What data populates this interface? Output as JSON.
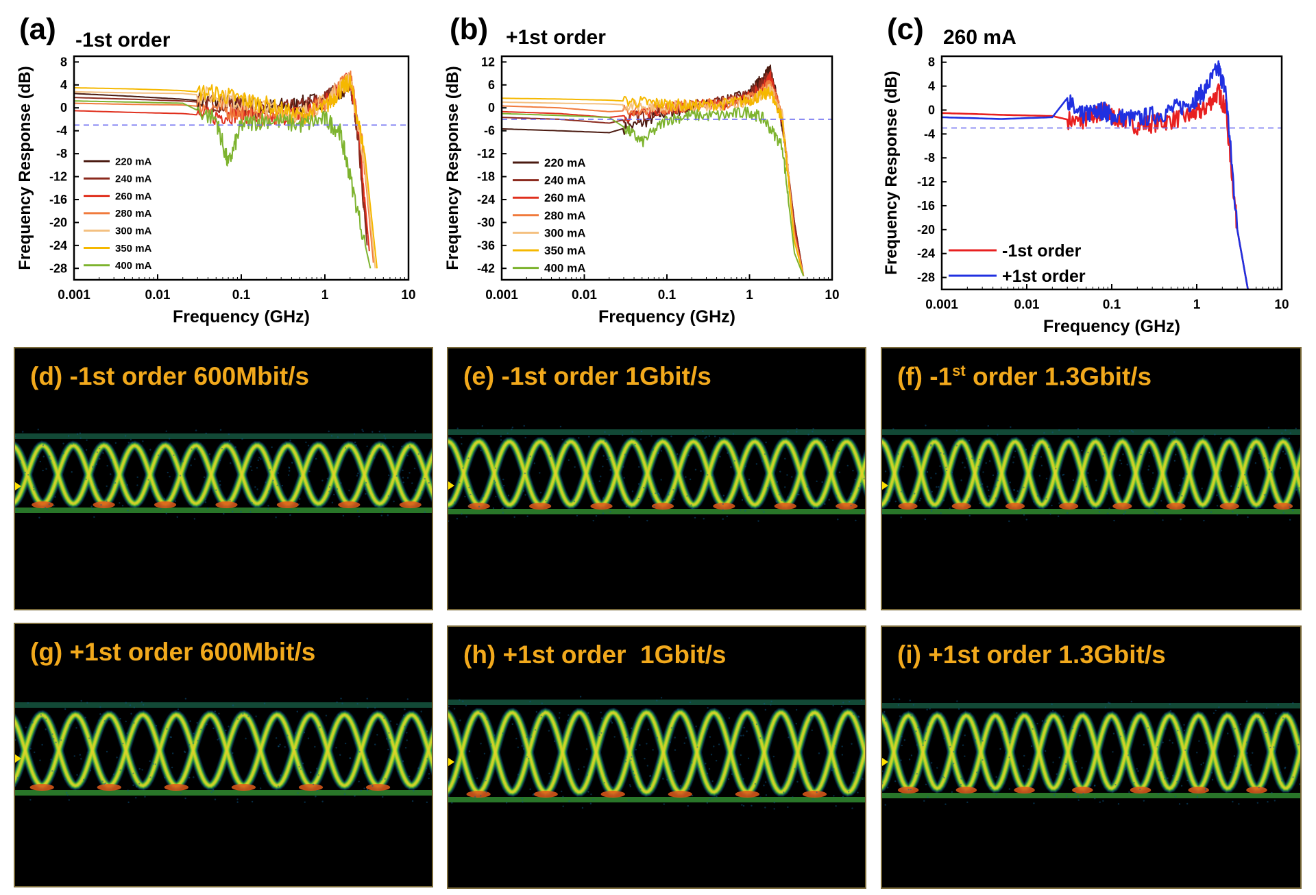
{
  "panels": {
    "a": {
      "letter": "(a)",
      "title": "-1st order"
    },
    "b": {
      "letter": "(b)",
      "title": "+1st order"
    },
    "c": {
      "letter": "(c)",
      "title": "260 mA"
    }
  },
  "colors": {
    "220 mA": "#4a1a10",
    "240 mA": "#8b2a1e",
    "260 mA": "#e0301e",
    "280 mA": "#f07a3c",
    "300 mA": "#f4c080",
    "350 mA": "#f5b800",
    "400 mA": "#7db32e",
    "-1st order": "#e82020",
    "+1st order": "#2030e0",
    "threshold": "#6b6bf0",
    "eye_text": "#f2a91c"
  },
  "chart_data": [
    {
      "id": "a",
      "type": "line",
      "title": "-1st order",
      "xlabel": "Frequency (GHz)",
      "ylabel": "Frequency Response (dB)",
      "xscale": "log",
      "xlim": [
        0.001,
        10
      ],
      "ylim": [
        -30,
        9
      ],
      "xticks": [
        "0.001",
        "0.01",
        "0.1",
        "1",
        "10"
      ],
      "yticks": [
        8,
        4,
        0,
        -4,
        -8,
        -12,
        -16,
        -20,
        -24,
        -28
      ],
      "reference_line_db": -3,
      "legend": "bottom-left",
      "series": [
        {
          "name": "220 mA",
          "x": [
            0.001,
            0.005,
            0.02,
            0.05,
            0.1,
            0.2,
            0.5,
            1,
            1.5,
            2,
            2.5,
            3.2
          ],
          "y": [
            2.5,
            2,
            1.5,
            1,
            0.5,
            0,
            0.5,
            1.5,
            3,
            4,
            -4,
            -22
          ]
        },
        {
          "name": "240 mA",
          "x": [
            0.001,
            0.005,
            0.02,
            0.05,
            0.1,
            0.2,
            0.5,
            1,
            1.5,
            2,
            2.5,
            3.2
          ],
          "y": [
            1.8,
            1.5,
            1.2,
            0.8,
            0.3,
            -0.5,
            0,
            1.5,
            3.5,
            4.5,
            -5,
            -24
          ]
        },
        {
          "name": "260 mA",
          "x": [
            0.001,
            0.005,
            0.02,
            0.05,
            0.1,
            0.2,
            0.5,
            1,
            1.5,
            2,
            2.5,
            3.4
          ],
          "y": [
            -0.5,
            -0.8,
            -1,
            -1.5,
            -1,
            -2,
            -1,
            1,
            3.5,
            5,
            -3,
            -25
          ]
        },
        {
          "name": "280 mA",
          "x": [
            0.001,
            0.005,
            0.02,
            0.05,
            0.1,
            0.2,
            0.5,
            1,
            1.5,
            2,
            2.8,
            3.8
          ],
          "y": [
            0.8,
            0.6,
            0.5,
            0,
            -1,
            -2,
            -1.5,
            1,
            3.5,
            5.5,
            -6,
            -27
          ]
        },
        {
          "name": "300 mA",
          "x": [
            0.001,
            0.005,
            0.02,
            0.05,
            0.1,
            0.2,
            0.5,
            1,
            1.5,
            2,
            3,
            4
          ],
          "y": [
            2.8,
            2.6,
            2.5,
            2,
            1,
            0,
            -1,
            1,
            3.5,
            5,
            -10,
            -28
          ]
        },
        {
          "name": "350 mA",
          "x": [
            0.001,
            0.005,
            0.02,
            0.05,
            0.1,
            0.2,
            0.5,
            1,
            1.5,
            2,
            3,
            4.2
          ],
          "y": [
            3.5,
            3.3,
            3,
            2.5,
            1.5,
            0.5,
            -1.5,
            0,
            3,
            4.5,
            -8,
            -28
          ]
        },
        {
          "name": "400 mA",
          "x": [
            0.001,
            0.005,
            0.02,
            0.05,
            0.07,
            0.1,
            0.2,
            0.5,
            1,
            1.5,
            2,
            3.5
          ],
          "y": [
            1.2,
            1,
            0.8,
            -2,
            -10,
            -3,
            -2,
            -3,
            -2,
            -4,
            -12,
            -28
          ]
        }
      ]
    },
    {
      "id": "b",
      "type": "line",
      "title": "+1st order",
      "xlabel": "Frequency (GHz)",
      "ylabel": "Frequency Response (dB)",
      "xscale": "log",
      "xlim": [
        0.001,
        10
      ],
      "ylim": [
        -45,
        13.5
      ],
      "xticks": [
        "0.001",
        "0.01",
        "0.1",
        "1",
        "10"
      ],
      "yticks": [
        12,
        6,
        0,
        -6,
        -12,
        -18,
        -24,
        -30,
        -36,
        -42
      ],
      "reference_line_db": -3,
      "legend": "bottom-left",
      "series": [
        {
          "name": "220 mA",
          "x": [
            0.001,
            0.005,
            0.02,
            0.05,
            0.1,
            0.2,
            0.5,
            1,
            1.5,
            1.8,
            2.5,
            3.5,
            4.5
          ],
          "y": [
            -5.5,
            -6,
            -6.5,
            -4,
            -1,
            0,
            1.5,
            4,
            8,
            10,
            -5,
            -30,
            -44
          ]
        },
        {
          "name": "240 mA",
          "x": [
            0.001,
            0.005,
            0.02,
            0.05,
            0.1,
            0.2,
            0.5,
            1,
            1.5,
            1.8,
            2.5,
            3.5,
            4.5
          ],
          "y": [
            -2.5,
            -3,
            -4,
            -2,
            -0.5,
            0.5,
            1.5,
            3.5,
            7,
            9,
            -4,
            -30,
            -44
          ]
        },
        {
          "name": "260 mA",
          "x": [
            0.001,
            0.005,
            0.02,
            0.05,
            0.1,
            0.2,
            0.5,
            1,
            1.5,
            1.8,
            2.5,
            3.5,
            4.5
          ],
          "y": [
            -1,
            -1.5,
            -2.5,
            -1.5,
            0,
            0.5,
            1,
            3,
            6,
            8,
            -3,
            -32,
            -44
          ]
        },
        {
          "name": "280 mA",
          "x": [
            0.001,
            0.005,
            0.02,
            0.05,
            0.1,
            0.2,
            0.5,
            1,
            1.5,
            1.8,
            2.5,
            3.5,
            4.5
          ],
          "y": [
            0.5,
            0,
            -1,
            -0.5,
            0,
            0.5,
            1,
            2.5,
            5,
            6,
            -2,
            -33,
            -44
          ]
        },
        {
          "name": "300 mA",
          "x": [
            0.001,
            0.005,
            0.02,
            0.05,
            0.1,
            0.2,
            0.5,
            1,
            1.5,
            1.8,
            2.5,
            3.5,
            4.5
          ],
          "y": [
            1.5,
            1.2,
            1,
            0.5,
            0.5,
            0.5,
            1,
            2,
            4,
            5,
            -2,
            -34,
            -44
          ]
        },
        {
          "name": "350 mA",
          "x": [
            0.001,
            0.005,
            0.02,
            0.05,
            0.1,
            0.2,
            0.5,
            1,
            1.5,
            1.8,
            2.5,
            3.5,
            4.5
          ],
          "y": [
            2.5,
            2.3,
            2,
            1.5,
            1,
            0.5,
            1,
            2,
            3.5,
            4,
            -3,
            -35,
            -44
          ]
        },
        {
          "name": "400 mA",
          "x": [
            0.001,
            0.005,
            0.02,
            0.03,
            0.05,
            0.1,
            0.2,
            0.5,
            1,
            1.5,
            2.5,
            3.5,
            4.5
          ],
          "y": [
            -1.5,
            -2,
            -2.5,
            -5,
            -9,
            -3,
            -2,
            -2,
            -1,
            -3,
            -10,
            -38,
            -44
          ]
        }
      ]
    },
    {
      "id": "c",
      "type": "line",
      "title": "260 mA",
      "xlabel": "Frequency (GHz)",
      "ylabel": "Frequency Response (dB)",
      "xscale": "log",
      "xlim": [
        0.001,
        10
      ],
      "ylim": [
        -30,
        9
      ],
      "xticks": [
        "0.001",
        "0.01",
        "0.1",
        "1",
        "10"
      ],
      "yticks": [
        8,
        4,
        0,
        -4,
        -8,
        -12,
        -16,
        -20,
        -24,
        -28
      ],
      "reference_line_db": -3,
      "legend": "bottom-left",
      "series": [
        {
          "name": "-1st order",
          "x": [
            0.001,
            0.005,
            0.02,
            0.04,
            0.06,
            0.08,
            0.1,
            0.2,
            0.4,
            0.8,
            1.2,
            1.8,
            2.2,
            3,
            4
          ],
          "y": [
            -0.5,
            -0.8,
            -1,
            -2,
            -1,
            0,
            -1,
            -2.5,
            -2,
            -1,
            0,
            3,
            0,
            -20,
            -30
          ]
        },
        {
          "name": "+1st order",
          "x": [
            0.001,
            0.005,
            0.02,
            0.03,
            0.04,
            0.06,
            0.08,
            0.1,
            0.2,
            0.4,
            0.8,
            1.2,
            1.8,
            2.2,
            3,
            4
          ],
          "y": [
            -1.2,
            -1.5,
            -1.2,
            2,
            -1,
            -0.5,
            0,
            -1,
            -1.5,
            -0.5,
            1,
            3,
            7,
            3,
            -20,
            -30
          ]
        }
      ]
    }
  ],
  "eye_diagrams": [
    {
      "label": "(d) -1st order 600Mbit/s",
      "order": "-1st",
      "rate": "600Mbit/s",
      "eyes": 6.8
    },
    {
      "label": "(e) -1st order 1Gbit/s",
      "order": "-1st",
      "rate": "1Gbit/s",
      "eyes": 6.8
    },
    {
      "label_pre": "(f) -1",
      "label_sup": "st",
      "label_post": " order 1.3Gbit/s",
      "order": "-1st",
      "rate": "1.3Gbit/s",
      "eyes": 7.8
    },
    {
      "label": "(g) +1st order 600Mbit/s",
      "order": "+1st",
      "rate": "600Mbit/s",
      "eyes": 6.2
    },
    {
      "label": "(h) +1st order  1Gbit/s",
      "order": "+1st",
      "rate": "1Gbit/s",
      "eyes": 6.2
    },
    {
      "label": "(i) +1st order 1.3Gbit/s",
      "order": "+1st",
      "rate": "1.3Gbit/s",
      "eyes": 7.2
    }
  ]
}
